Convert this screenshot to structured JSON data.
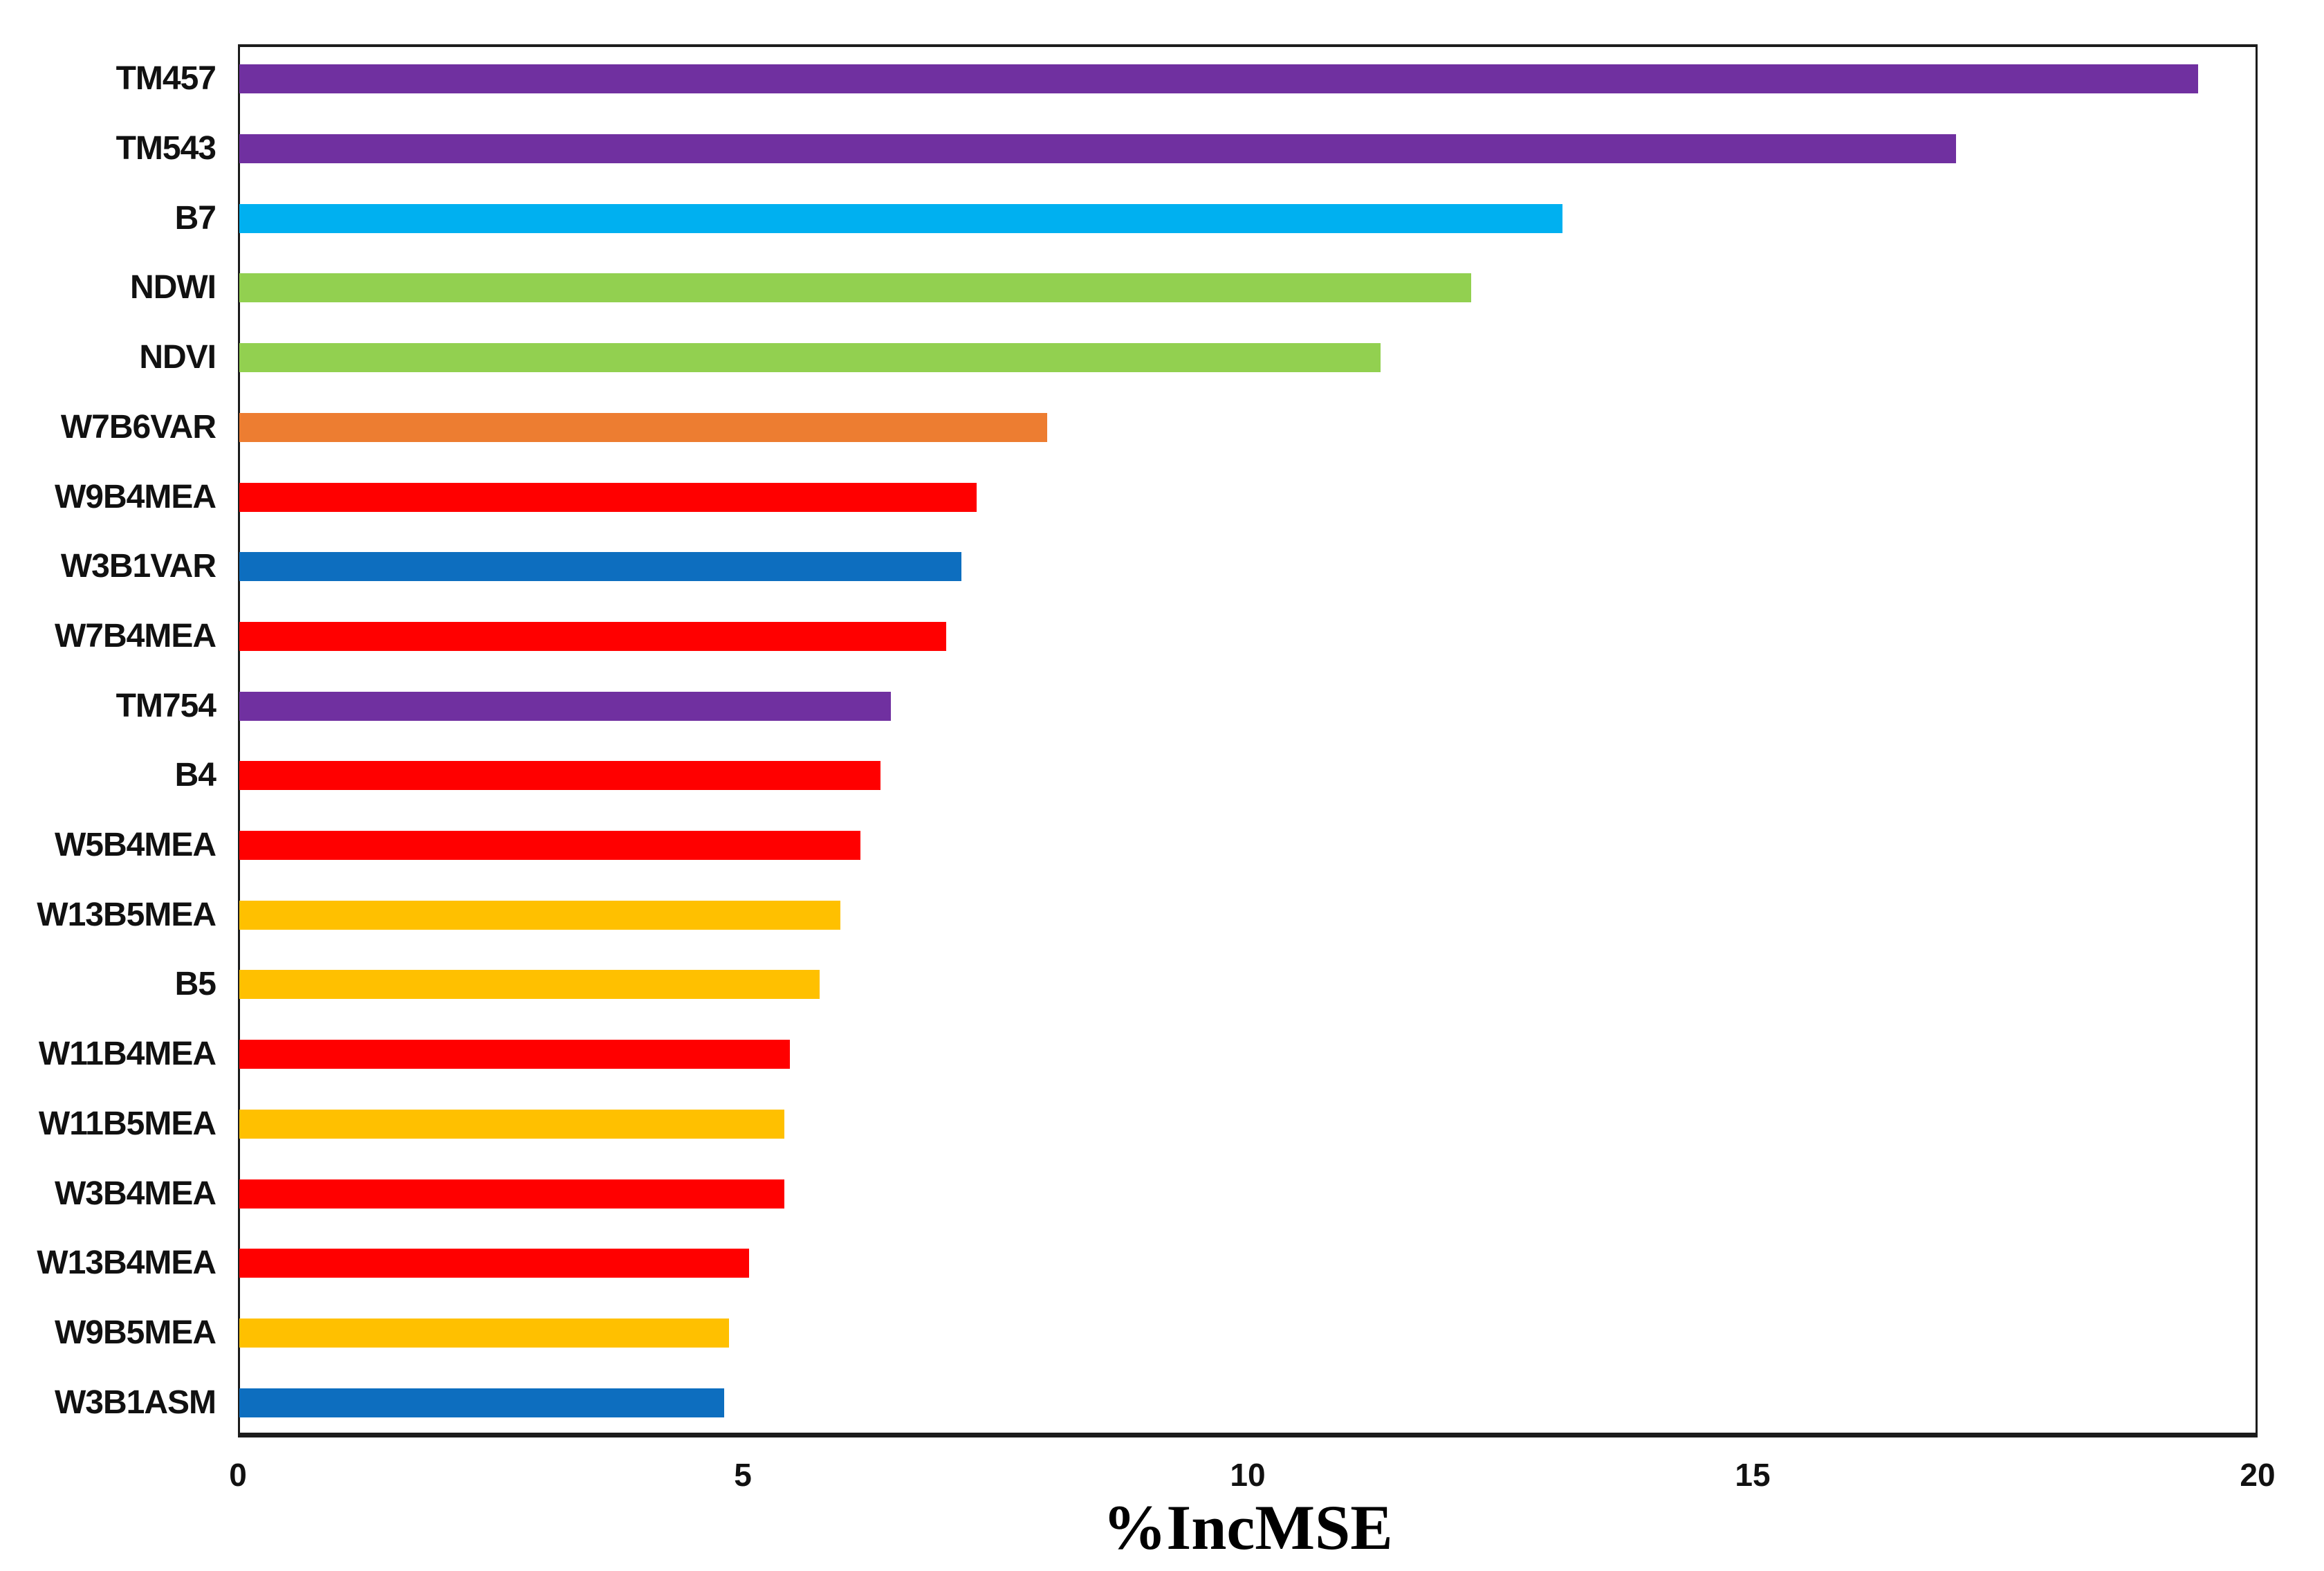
{
  "page": {
    "background": "#FFFFFF"
  },
  "chart_data": {
    "type": "bar",
    "orientation": "horizontal",
    "title": "",
    "xlabel": "%IncMSE",
    "ylabel": "",
    "xlim": [
      0,
      20
    ],
    "xticks": [
      0,
      5,
      10,
      15,
      20
    ],
    "tick_labels": [
      "0",
      "5",
      "10",
      "15",
      "20"
    ],
    "grid": false,
    "legend": null,
    "sort": "descending-top-to-bottom",
    "categories": [
      "TM457",
      "TM543",
      "B7",
      "NDWI",
      "NDVI",
      "W7B6VAR",
      "W9B4MEA",
      "W3B1VAR",
      "W7B4MEA",
      "TM754",
      "B4",
      "W5B4MEA",
      "W13B5MEA",
      "B5",
      "W11B4MEA",
      "W11B5MEA",
      "W3B4MEA",
      "W13B4MEA",
      "W9B5MEA",
      "W3B1ASM"
    ],
    "values": [
      19.4,
      17.0,
      13.1,
      12.2,
      11.3,
      8.0,
      7.3,
      7.15,
      7.0,
      6.45,
      6.35,
      6.15,
      5.95,
      5.75,
      5.45,
      5.4,
      5.4,
      5.05,
      4.85,
      4.8
    ],
    "colors": [
      "#7030A0",
      "#7030A0",
      "#00B0F0",
      "#92D050",
      "#92D050",
      "#ED7D31",
      "#FF0000",
      "#0D6EBF",
      "#FF0000",
      "#7030A0",
      "#FF0000",
      "#FF0000",
      "#FFC000",
      "#FFC000",
      "#FF0000",
      "#FFC000",
      "#FF0000",
      "#FF0000",
      "#FFC000",
      "#0D6EBF"
    ],
    "palette": {
      "purple": "#7030A0",
      "cyan": "#00B0F0",
      "green": "#92D050",
      "orange": "#ED7D31",
      "red": "#FF0000",
      "blue": "#0D6EBF",
      "gold": "#FFC000"
    },
    "axis_color": "#1C1C1C",
    "background": "#FFFFFF"
  }
}
